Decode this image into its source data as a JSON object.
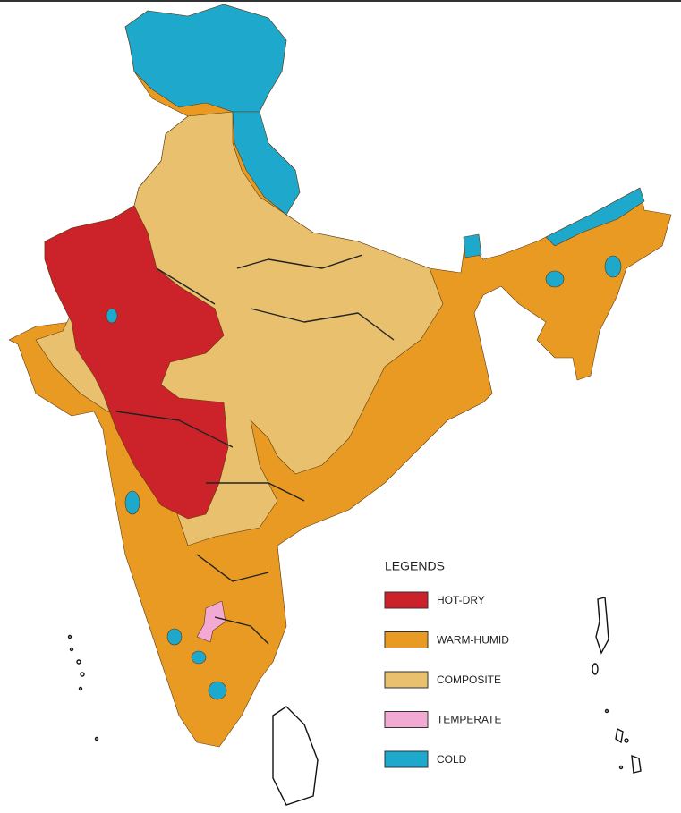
{
  "legend": {
    "title": "LEGENDS",
    "items": [
      {
        "label": "HOT-DRY",
        "color": "#cc2229"
      },
      {
        "label": "WARM-HUMID",
        "color": "#e89a22"
      },
      {
        "label": "COMPOSITE",
        "color": "#e8c06e"
      },
      {
        "label": "TEMPERATE",
        "color": "#f2a9d3"
      },
      {
        "label": "COLD",
        "color": "#1ea8cc"
      }
    ]
  }
}
